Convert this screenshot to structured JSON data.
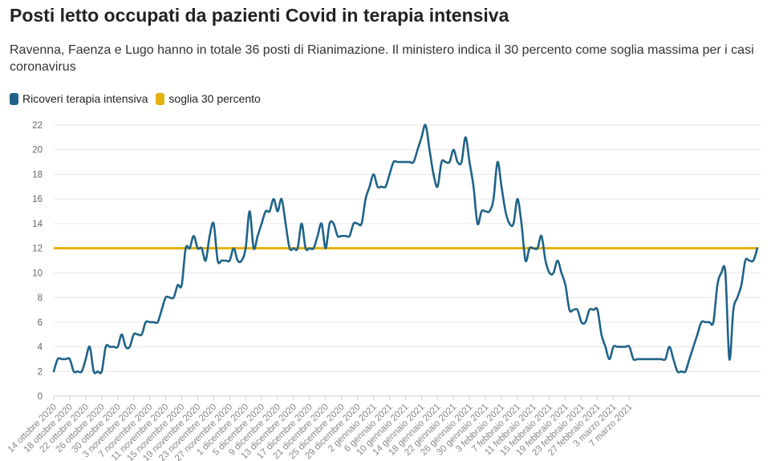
{
  "header": {
    "title": "Posti letto occupati da pazienti Covid in terapia intensiva",
    "subtitle": "Ravenna, Faenza e Lugo hanno in totale 36 posti di Rianimazione. Il ministero indica il 30 percento come soglia massima per i casi coronavirus"
  },
  "legend": {
    "items": [
      {
        "label": "Ricoveri terapia intensiva",
        "color": "#1f6388"
      },
      {
        "label": "soglia 30 percento",
        "color": "#e3b10d"
      }
    ]
  },
  "chart_data": {
    "type": "line",
    "start_date": "2020-10-14",
    "ylim": [
      0,
      22
    ],
    "yticks": [
      0,
      2,
      4,
      6,
      8,
      10,
      12,
      14,
      16,
      18,
      20,
      22
    ],
    "grid": true,
    "legend_position": "top-left",
    "xtick_labels": [
      "14 ottobre 2020",
      "18 ottobre 2020",
      "22 ottobre 2020",
      "26 ottobre 2020",
      "30 ottobre 2020",
      "3 novembre 2020",
      "7 novembre 2020",
      "11 novembre 2020",
      "15 novembre 2020",
      "19 novembre 2020",
      "23 novembre 2020",
      "27 novembre 2020",
      "1 dicembre 2020",
      "5 dicembre 2020",
      "9 dicembre 2020",
      "13 dicembre 2020",
      "17 dicembre 2020",
      "21 dicembre 2020",
      "25 dicembre 2020",
      "29 dicembre 2020",
      "2 gennaio 2021",
      "6 gennaio 2021",
      "10 gennaio 2021",
      "14 gennaio 2021",
      "18 gennaio 2021",
      "22 gennaio 2021",
      "26 gennaio 2021",
      "30 gennaio 2021",
      "3 febbraio 2021",
      "7 febbraio 2021",
      "11 febbraio 2021",
      "15 febbraio 2021",
      "19 febbraio 2021",
      "23 febbraio 2021",
      "27 febbraio 2021",
      "3 marzo 2021",
      "7 marzo 2021"
    ],
    "series": [
      {
        "name": "Ricoveri terapia intensiva",
        "color": "#1f6388",
        "values": [
          2,
          3,
          3,
          3,
          3,
          2,
          2,
          2,
          3,
          4,
          2,
          2,
          2,
          4,
          4,
          4,
          4,
          5,
          4,
          4,
          5,
          5,
          5,
          6,
          6,
          6,
          6,
          7,
          8,
          8,
          8,
          9,
          9,
          12,
          12,
          13,
          12,
          12,
          11,
          13,
          14,
          11,
          11,
          11,
          11,
          12,
          11,
          11,
          12,
          15,
          12,
          13,
          14,
          15,
          15,
          16,
          15,
          16,
          14,
          12,
          12,
          12,
          14,
          12,
          12,
          12,
          13,
          14,
          12,
          14,
          14,
          13,
          13,
          13,
          13,
          14,
          14,
          14,
          16,
          17,
          18,
          17,
          17,
          17,
          18,
          19,
          19,
          19,
          19,
          19,
          19,
          20,
          21,
          22,
          20,
          18,
          17,
          19,
          19,
          19,
          20,
          19,
          19,
          21,
          19,
          17,
          14,
          15,
          15,
          15,
          16,
          19,
          17,
          15,
          14,
          14,
          16,
          14,
          11,
          12,
          12,
          12,
          13,
          11,
          10,
          10,
          11,
          10,
          9,
          7,
          7,
          7,
          6,
          6,
          7,
          7,
          7,
          5,
          4,
          3,
          4,
          4,
          4,
          4,
          4,
          3,
          3,
          3,
          3,
          3,
          3,
          3,
          3,
          3,
          4,
          3,
          2,
          2,
          2,
          3,
          4,
          5,
          6,
          6,
          6,
          6,
          9,
          10,
          10,
          3,
          7,
          8,
          9,
          11,
          11,
          11,
          12
        ]
      },
      {
        "name": "soglia 30 percento",
        "color": "#e3b10d",
        "constant": 12
      }
    ]
  }
}
